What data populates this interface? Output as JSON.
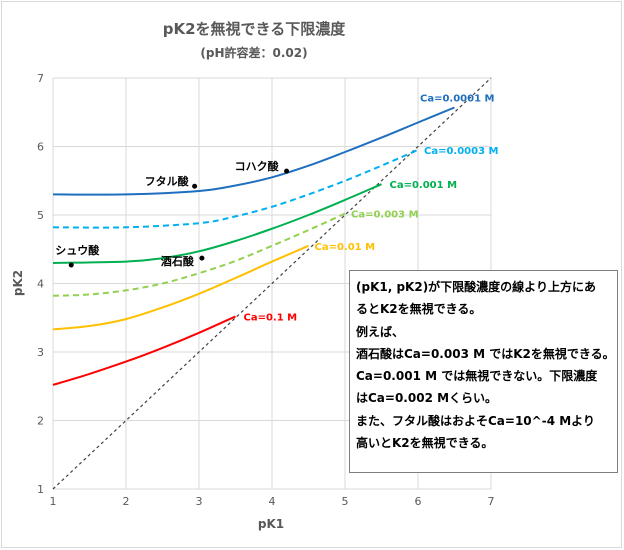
{
  "chart_data": {
    "type": "line",
    "title": "pK2を無視できる下限濃度",
    "subtitle": "(pH許容差：0.02)",
    "xlabel": "pK1",
    "ylabel": "pK2",
    "xlim": [
      1,
      7
    ],
    "ylim": [
      1,
      7
    ],
    "x_ticks": [
      "1",
      "2",
      "3",
      "4",
      "5",
      "6",
      "7"
    ],
    "y_ticks": [
      "1",
      "2",
      "3",
      "4",
      "5",
      "6",
      "7"
    ],
    "grid": true,
    "colors": {
      "blue": "#1f6fbf",
      "lightblue": "#00b0f0",
      "green": "#00b050",
      "lightgreen": "#92d050",
      "yellow": "#ffc000",
      "red": "#ff0000",
      "diagonal": "#404040"
    },
    "series": [
      {
        "name": "Ca=0.0001 M",
        "color": "#1f6fbf",
        "dash": "solid",
        "x": [
          1.0,
          2.0,
          3.0,
          3.5,
          4.0,
          4.5,
          5.0,
          5.5,
          6.0,
          6.5
        ],
        "y": [
          5.3,
          5.3,
          5.35,
          5.43,
          5.55,
          5.72,
          5.92,
          6.13,
          6.35,
          6.57
        ]
      },
      {
        "name": "Ca=0.0003 M",
        "color": "#00b0f0",
        "dash": "dashed",
        "x": [
          1.0,
          2.0,
          3.0,
          3.5,
          4.0,
          4.5,
          5.0,
          5.5,
          6.0
        ],
        "y": [
          4.82,
          4.82,
          4.88,
          4.98,
          5.12,
          5.3,
          5.5,
          5.72,
          5.95
        ]
      },
      {
        "name": "Ca=0.001 M",
        "color": "#00b050",
        "dash": "solid",
        "x": [
          1.0,
          2.0,
          2.5,
          3.0,
          3.5,
          4.0,
          4.5,
          5.0,
          5.5
        ],
        "y": [
          4.3,
          4.32,
          4.37,
          4.47,
          4.62,
          4.8,
          5.0,
          5.22,
          5.45
        ]
      },
      {
        "name": "Ca=0.003 M",
        "color": "#92d050",
        "dash": "dashed",
        "x": [
          1.0,
          1.5,
          2.0,
          2.5,
          3.0,
          3.5,
          4.0,
          4.5,
          5.0
        ],
        "y": [
          3.82,
          3.84,
          3.9,
          4.0,
          4.15,
          4.33,
          4.55,
          4.78,
          5.02
        ]
      },
      {
        "name": "Ca=0.01 M",
        "color": "#ffc000",
        "dash": "solid",
        "x": [
          1.0,
          1.5,
          2.0,
          2.5,
          3.0,
          3.5,
          4.0,
          4.5
        ],
        "y": [
          3.33,
          3.38,
          3.48,
          3.65,
          3.85,
          4.08,
          4.32,
          4.55
        ]
      },
      {
        "name": "Ca=0.1 M",
        "color": "#ff0000",
        "dash": "solid",
        "x": [
          1.0,
          1.5,
          2.0,
          2.5,
          3.0,
          3.5
        ],
        "y": [
          2.52,
          2.68,
          2.86,
          3.06,
          3.28,
          3.52
        ]
      }
    ],
    "diagonal": {
      "x": [
        1,
        7
      ],
      "y": [
        1,
        7
      ]
    },
    "points": [
      {
        "label": "フタル酸",
        "x": 2.94,
        "y": 5.42
      },
      {
        "label": "コハク酸",
        "x": 4.2,
        "y": 5.64
      },
      {
        "label": "シュウ酸",
        "x": 1.25,
        "y": 4.27
      },
      {
        "label": "酒石酸",
        "x": 3.04,
        "y": 4.37
      }
    ]
  },
  "note": {
    "lines": [
      "(pK1, pK2)が下限酸濃度の線より上方にあ",
      "るとK2を無視できる。",
      "例えば、",
      "酒石酸はCa=0.003 M ではK2を無視できる。",
      "Ca=0.001 M では無視できない。下限濃度",
      "はCa=0.002 Mくらい。",
      "また、フタル酸はおよそCa=10^-4 Mより",
      "高いとK2を無視できる。"
    ]
  }
}
